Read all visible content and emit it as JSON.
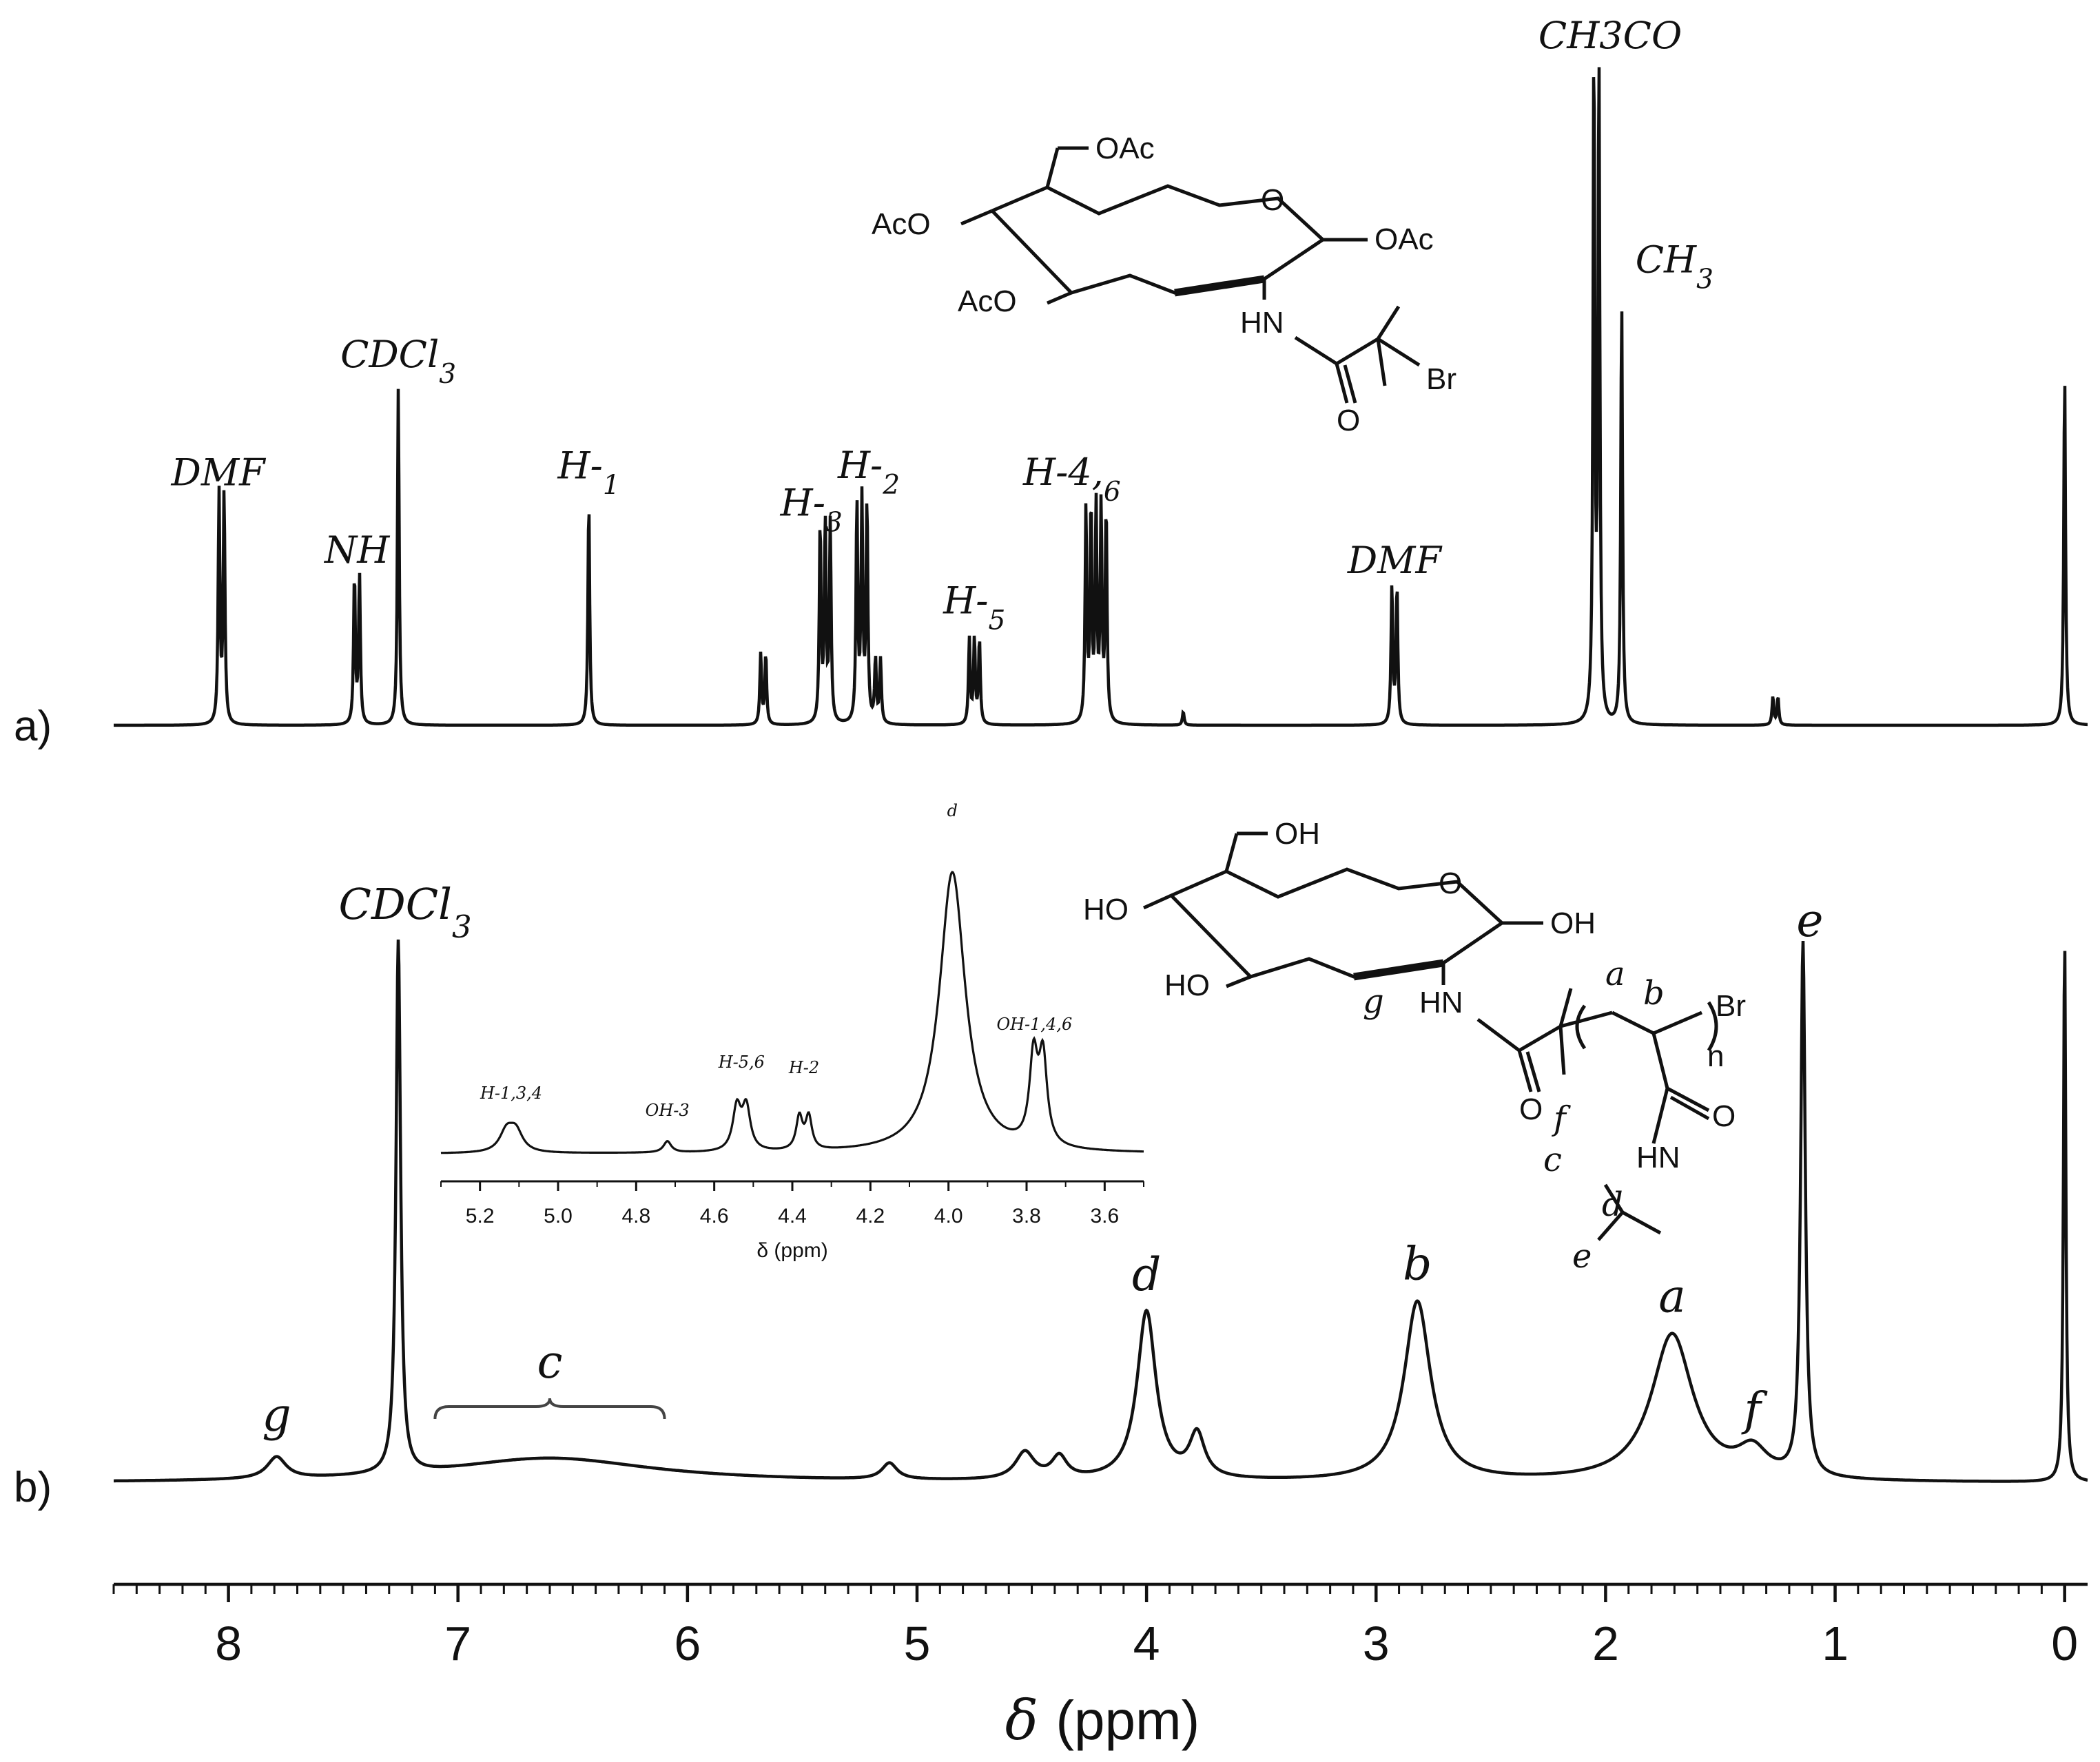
{
  "chart_data": [
    {
      "type": "line",
      "panel_label": "a)",
      "x_direction": "reversed",
      "peaks": [
        {
          "label": "DMF",
          "x": 8.03,
          "rel_height": 0.65,
          "multiplet": 2
        },
        {
          "label": "NH",
          "x": 7.44,
          "rel_height": 0.42,
          "multiplet": 2
        },
        {
          "label": "CDCl3",
          "x": 7.26,
          "rel_height": 1.0,
          "multiplet": 1
        },
        {
          "label": "H-1",
          "x": 6.43,
          "rel_height": 0.67,
          "multiplet": 1
        },
        {
          "label": "",
          "x": 5.67,
          "rel_height": 0.2,
          "multiplet": 2
        },
        {
          "label": "H-3",
          "x": 5.4,
          "rel_height": 0.56,
          "multiplet": 3
        },
        {
          "label": "H-2",
          "x": 5.24,
          "rel_height": 0.62,
          "multiplet": 3
        },
        {
          "label": "",
          "x": 5.17,
          "rel_height": 0.18,
          "multiplet": 2
        },
        {
          "label": "H-5",
          "x": 4.75,
          "rel_height": 0.24,
          "multiplet": 3
        },
        {
          "label": "H-4,6",
          "x": 4.22,
          "rel_height": 0.6,
          "multiplet": 5
        },
        {
          "label": "",
          "x": 3.84,
          "rel_height": 0.04,
          "multiplet": 1
        },
        {
          "label": "DMF",
          "x": 2.92,
          "rel_height": 0.39,
          "multiplet": 2
        },
        {
          "label": "CH3CO",
          "x": 2.04,
          "rel_height": 1.89,
          "multiplet": 2
        },
        {
          "label": "CH3",
          "x": 1.93,
          "rel_height": 1.26,
          "multiplet": 1
        },
        {
          "label": "",
          "x": 1.26,
          "rel_height": 0.08,
          "multiplet": 2
        },
        {
          "label": "",
          "x": 0.0,
          "rel_height": 1.05,
          "multiplet": 1
        }
      ],
      "structure": {
        "substituents": [
          "OAc",
          "AcO",
          "AcO",
          "OAc",
          "O",
          "HN",
          "O",
          "Br"
        ]
      }
    },
    {
      "type": "line",
      "panel_label": "b)",
      "x_direction": "reversed",
      "peaks": [
        {
          "label": "g",
          "x": 7.79,
          "rel_height": 0.04,
          "width": 0.05
        },
        {
          "label": "CDCl3",
          "x": 7.26,
          "rel_height": 0.98,
          "width": 0.012
        },
        {
          "label": "c",
          "x": 6.6,
          "rel_height": 0.045,
          "width": 0.55
        },
        {
          "label": "",
          "x": 5.12,
          "rel_height": 0.03,
          "width": 0.04
        },
        {
          "label": "",
          "x": 4.53,
          "rel_height": 0.05,
          "width": 0.05
        },
        {
          "label": "",
          "x": 4.38,
          "rel_height": 0.04,
          "width": 0.04
        },
        {
          "label": "d",
          "x": 4.0,
          "rel_height": 0.31,
          "width": 0.05
        },
        {
          "label": "",
          "x": 3.78,
          "rel_height": 0.08,
          "width": 0.04
        },
        {
          "label": "b",
          "x": 2.82,
          "rel_height": 0.33,
          "width": 0.07
        },
        {
          "label": "a",
          "x": 1.71,
          "rel_height": 0.27,
          "width": 0.11
        },
        {
          "label": "f",
          "x": 1.36,
          "rel_height": 0.05,
          "width": 0.08
        },
        {
          "label": "e",
          "x": 1.14,
          "rel_height": 0.98,
          "width": 0.012
        },
        {
          "label": "",
          "x": 0.0,
          "rel_height": 1.0,
          "width": 0.006
        }
      ],
      "bracket_label": "c",
      "bracket_range": [
        7.1,
        6.1
      ],
      "structure": {
        "substituents": [
          "OH",
          "HO",
          "HO",
          "OH",
          "O",
          "HN",
          "O",
          "O",
          "HN",
          "Br",
          "n"
        ],
        "labels": [
          "g",
          "a",
          "b",
          "f",
          "c",
          "d",
          "e"
        ]
      }
    },
    {
      "type": "line",
      "title": "",
      "xlabel": "δ (ppm)",
      "xlim": [
        5.3,
        3.5
      ],
      "x_direction": "reversed",
      "x_ticks": [
        "5.2",
        "5.0",
        "4.8",
        "4.6",
        "4.4",
        "4.2",
        "4.0",
        "3.8",
        "3.6"
      ],
      "x_tick_values": [
        5.2,
        5.0,
        4.8,
        4.6,
        4.4,
        4.2,
        4.0,
        3.8,
        3.6
      ],
      "peaks": [
        {
          "label": "H-1,3,4",
          "x": 5.12,
          "rel_height": 0.08
        },
        {
          "label": "OH-3",
          "x": 4.72,
          "rel_height": 0.04
        },
        {
          "label": "H-5,6",
          "x": 4.53,
          "rel_height": 0.17
        },
        {
          "label": "H-2",
          "x": 4.37,
          "rel_height": 0.13
        },
        {
          "label": "d",
          "x": 3.99,
          "rel_height": 1.0
        },
        {
          "label": "OH-1,4,6",
          "x": 3.77,
          "rel_height": 0.34
        }
      ]
    }
  ],
  "axis": {
    "xlabel_symbol": "δ",
    "xlabel_unit": "(ppm)",
    "xlim": [
      8.5,
      -0.1
    ],
    "x_ticks": [
      "8",
      "7",
      "6",
      "5",
      "4",
      "3",
      "2",
      "1",
      "0"
    ],
    "x_tick_values": [
      8,
      7,
      6,
      5,
      4,
      3,
      2,
      1,
      0
    ]
  },
  "colors": {
    "line": "#111111",
    "background": "#ffffff"
  }
}
